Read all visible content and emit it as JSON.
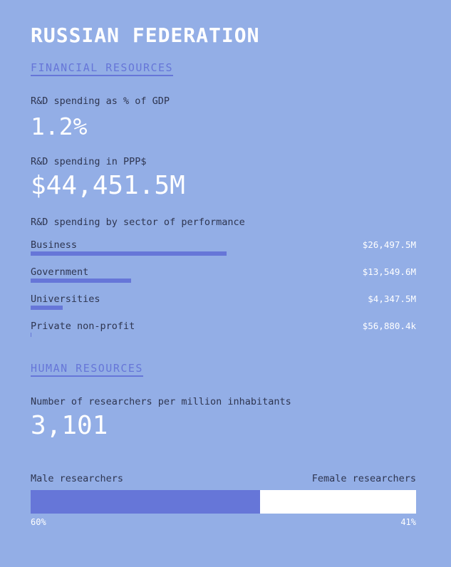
{
  "title": "RUSSIAN FEDERATION",
  "financial": {
    "heading": "FINANCIAL RESOURCES",
    "gdp_label": "R&D spending as % of GDP",
    "gdp_value": "1.2%",
    "ppp_label": "R&D spending in PPP$",
    "ppp_value": "$44,451.5M",
    "sector_label": "R&D spending by sector of performance",
    "sectors": [
      {
        "name": "Business",
        "value": "$26,497.5M",
        "share": 0.5961
      },
      {
        "name": "Government",
        "value": "$13,549.6M",
        "share": 0.3048
      },
      {
        "name": "Universities",
        "value": "$4,347.5M",
        "share": 0.0978
      },
      {
        "name": "Private non-profit",
        "value": "$56,880.4k",
        "share": 0.0013
      }
    ]
  },
  "human": {
    "heading": "HUMAN RESOURCES",
    "researchers_label": "Number of researchers per million inhabitants",
    "researchers_value": "3,101",
    "male_label": "Male researchers",
    "female_label": "Female researchers",
    "male_pct": "60%",
    "female_pct": "41%",
    "male_share": 0.595
  },
  "colors": {
    "background": "#93aee6",
    "accent": "#6676d8",
    "text": "#2e3550",
    "highlight": "#ffffff"
  }
}
